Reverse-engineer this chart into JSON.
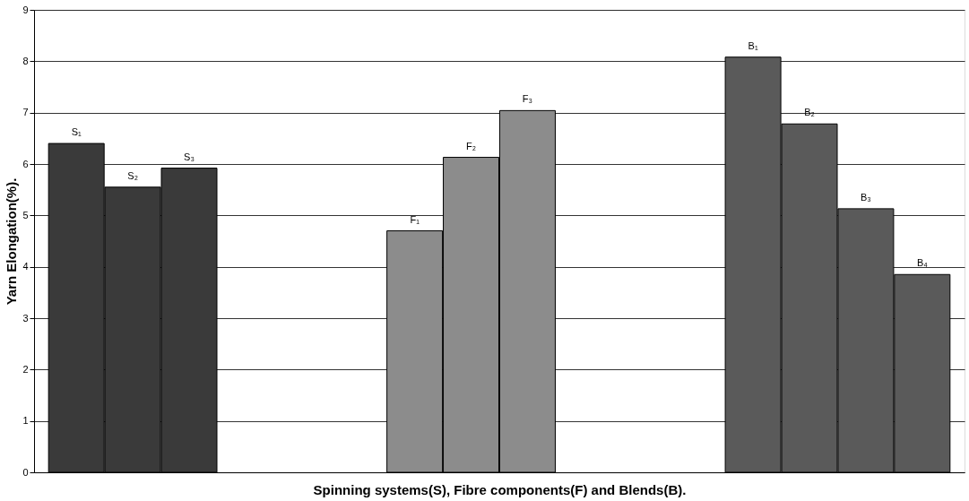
{
  "chart_data": {
    "type": "bar",
    "xlabel": "Spinning systems(S), Fibre components(F) and Blends(B).",
    "ylabel": "Yarn Elongation(%).",
    "categories": [
      null,
      null,
      null,
      null,
      null,
      null,
      null,
      null,
      null,
      null,
      null,
      null,
      null,
      null,
      null,
      null
    ],
    "values": [
      6.4,
      5.55,
      5.92,
      null,
      null,
      null,
      4.7,
      6.13,
      7.04,
      null,
      null,
      null,
      8.08,
      6.78,
      5.13,
      3.85
    ],
    "colors": [
      "#3a3a3a",
      "#3a3a3a",
      "#3a3a3a",
      null,
      null,
      null,
      "#8c8c8c",
      "#8c8c8c",
      "#8c8c8c",
      null,
      null,
      null,
      "#5a5a5a",
      "#5a5a5a",
      "#5a5a5a",
      "#5a5a5a"
    ],
    "value_labels": [
      "S₁",
      "S₂",
      "S₃",
      null,
      null,
      null,
      "F₁",
      "F₂",
      "F₃",
      null,
      null,
      null,
      "B₁",
      "B₂",
      "B₃",
      "B₄"
    ],
    "ylim": [
      0,
      9
    ],
    "yticks": [
      0,
      1,
      2,
      3,
      4,
      5,
      6,
      7,
      8,
      9
    ],
    "grid": "y",
    "tick_labels": "y"
  }
}
